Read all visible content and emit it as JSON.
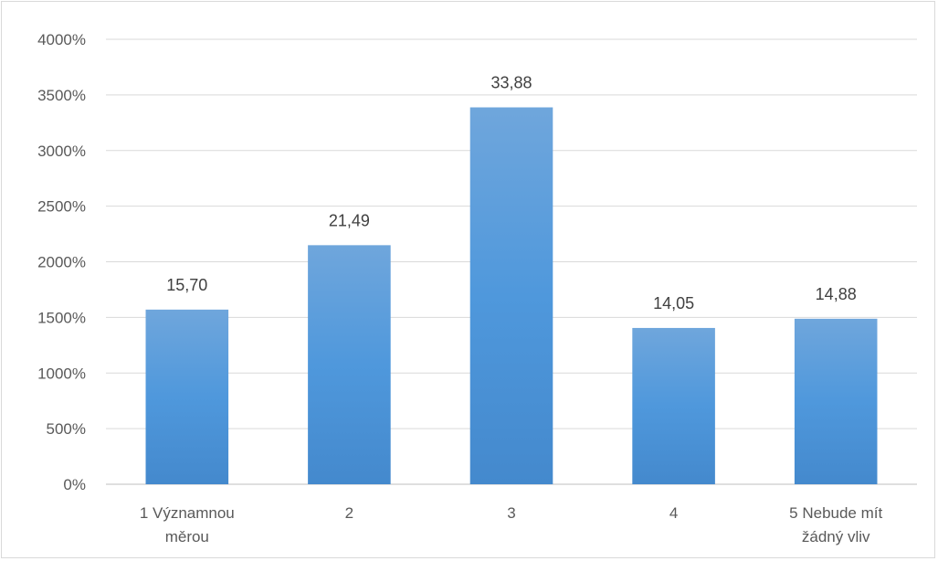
{
  "chart_data": {
    "type": "bar",
    "categories": [
      [
        "1 Významnou",
        "měrou"
      ],
      [
        "2"
      ],
      [
        "3"
      ],
      [
        "4"
      ],
      [
        "5 Nebude mít",
        "žádný vliv"
      ]
    ],
    "values": [
      1570,
      2149,
      3388,
      1405,
      1488
    ],
    "data_labels": [
      "15,70",
      "21,49",
      "33,88",
      "14,05",
      "14,88"
    ],
    "y_ticks": [
      "0%",
      "500%",
      "1000%",
      "1500%",
      "2000%",
      "2500%",
      "3000%",
      "3500%",
      "4000%"
    ],
    "ylim": [
      0,
      4000
    ],
    "y_unit": "%",
    "grid": true,
    "legend": "none",
    "title": "",
    "xlabel": "",
    "ylabel": "",
    "colors": {
      "bar_top": "#6fa6dc",
      "bar_mid": "#4f98dc",
      "bar_bottom": "#4489cd"
    }
  }
}
